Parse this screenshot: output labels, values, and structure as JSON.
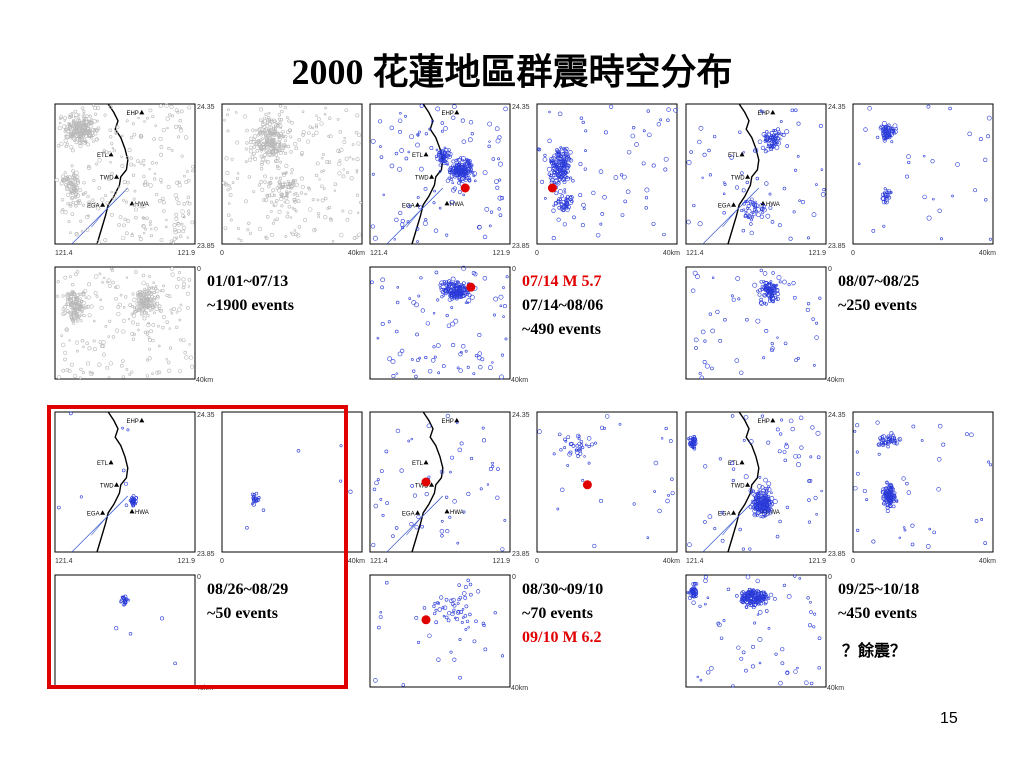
{
  "title": "2000 花蓮地區群震時空分布",
  "page_number": "15",
  "map_labels": {
    "lat_top": "24.35",
    "lat_bottom": "23.85",
    "lon_left": "121.4",
    "lon_right": "121.9",
    "zero": "0",
    "forty_km": "40km",
    "stations": [
      "EHP",
      "ETL",
      "TWD",
      "EGA",
      "HWA"
    ]
  },
  "colors": {
    "gray": "#b8b8b8",
    "blue": "#2a3ad8",
    "red": "#e00000"
  },
  "periods": [
    {
      "id": "p1",
      "range": "01/01~07/13",
      "events": "~1900 events"
    },
    {
      "id": "p2",
      "mainshock": "07/14 M 5.7",
      "range": "07/14~08/06",
      "events": "~490 events"
    },
    {
      "id": "p3",
      "range": "08/07~08/25",
      "events": "~250 events"
    },
    {
      "id": "p4",
      "range": "08/26~08/29",
      "events": "~50 events"
    },
    {
      "id": "p5",
      "range": "08/30~09/10",
      "events": "~70 events",
      "mainshock": "09/10 M 6.2"
    },
    {
      "id": "p6",
      "range": "09/25~10/18",
      "events": "~450 events",
      "note": "？餘震？"
    }
  ]
}
